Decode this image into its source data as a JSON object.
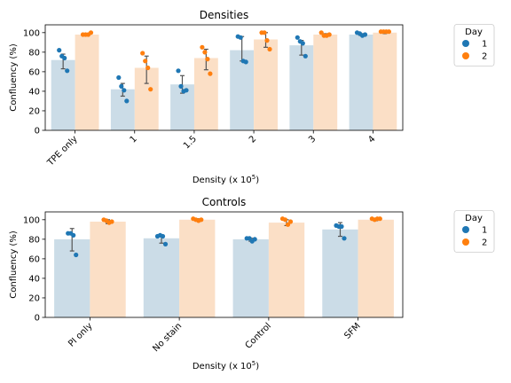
{
  "colors": {
    "day1_point": "#1f77b4",
    "day2_point": "#ff7f0e",
    "day1_bar": "#cbdce7",
    "day2_bar": "#fbdfc6",
    "error_bar": "#555555",
    "axis": "#000000"
  },
  "chart_data": [
    {
      "type": "bar",
      "title": "Densities",
      "xlabel": "Density (x 10",
      "xlabel_exponent": "5",
      "xlabel_suffix": ")",
      "ylabel": "Confluency (%)",
      "ylim": [
        0,
        108
      ],
      "yticks": [
        0,
        20,
        40,
        60,
        80,
        100
      ],
      "categories": [
        "TPE only",
        "1",
        "1.5",
        "2",
        "3",
        "4"
      ],
      "legend": {
        "title": "Day",
        "position": "outside right",
        "entries": [
          "1",
          "2"
        ]
      },
      "series": [
        {
          "name": "1",
          "values": [
            72,
            42,
            47,
            82,
            87,
            98
          ],
          "error": [
            [
              63,
              78
            ],
            [
              35,
              48
            ],
            [
              38,
              56
            ],
            [
              71,
              96
            ],
            [
              77,
              92
            ],
            [
              97,
              99
            ]
          ],
          "points": [
            [
              82,
              76,
              74,
              61
            ],
            [
              54,
              45,
              41,
              30
            ],
            [
              61,
              45,
              40,
              41
            ],
            [
              96,
              95,
              71,
              70
            ],
            [
              95,
              91,
              89,
              76
            ],
            [
              100,
              99,
              97,
              98
            ]
          ]
        },
        {
          "name": "2",
          "values": [
            98,
            64,
            74,
            93,
            98,
            100
          ],
          "error": [
            [
              98,
              99
            ],
            [
              48,
              76
            ],
            [
              62,
              83
            ],
            [
              85,
              100
            ],
            [
              97,
              99
            ],
            [
              99,
              100
            ]
          ],
          "points": [
            [
              98,
              98,
              98,
              100
            ],
            [
              79,
              71,
              64,
              42
            ],
            [
              85,
              80,
              73,
              58
            ],
            [
              100,
              100,
              92,
              83
            ],
            [
              100,
              97,
              97,
              98
            ],
            [
              101,
              101,
              101,
              101
            ]
          ]
        }
      ]
    },
    {
      "type": "bar",
      "title": "Controls",
      "xlabel": "Density (x 10",
      "xlabel_exponent": "5",
      "xlabel_suffix": ")",
      "ylabel": "Confluency (%)",
      "ylim": [
        0,
        108
      ],
      "yticks": [
        0,
        20,
        40,
        60,
        80,
        100
      ],
      "categories": [
        "PI only",
        "No stain",
        "Control",
        "SFM"
      ],
      "legend": {
        "title": "Day",
        "position": "outside right",
        "entries": [
          "1",
          "2"
        ]
      },
      "series": [
        {
          "name": "1",
          "values": [
            80,
            81,
            80,
            90
          ],
          "error": [
            [
              68,
              91
            ],
            [
              76,
              84
            ],
            [
              78,
              81
            ],
            [
              83,
              97
            ]
          ],
          "points": [
            [
              86,
              86,
              84,
              64
            ],
            [
              83,
              84,
              83,
              75
            ],
            [
              81,
              81,
              78,
              80
            ],
            [
              94,
              93,
              93,
              81
            ]
          ]
        },
        {
          "name": "2",
          "values": [
            98,
            100,
            97,
            100
          ],
          "error": [
            [
              96,
              100
            ],
            [
              99,
              101
            ],
            [
              94,
              100
            ],
            [
              99,
              101
            ]
          ],
          "points": [
            [
              100,
              99,
              97,
              98
            ],
            [
              101,
              100,
              99,
              100
            ],
            [
              101,
              100,
              95,
              98
            ],
            [
              101,
              100,
              101,
              101
            ]
          ]
        }
      ]
    }
  ]
}
